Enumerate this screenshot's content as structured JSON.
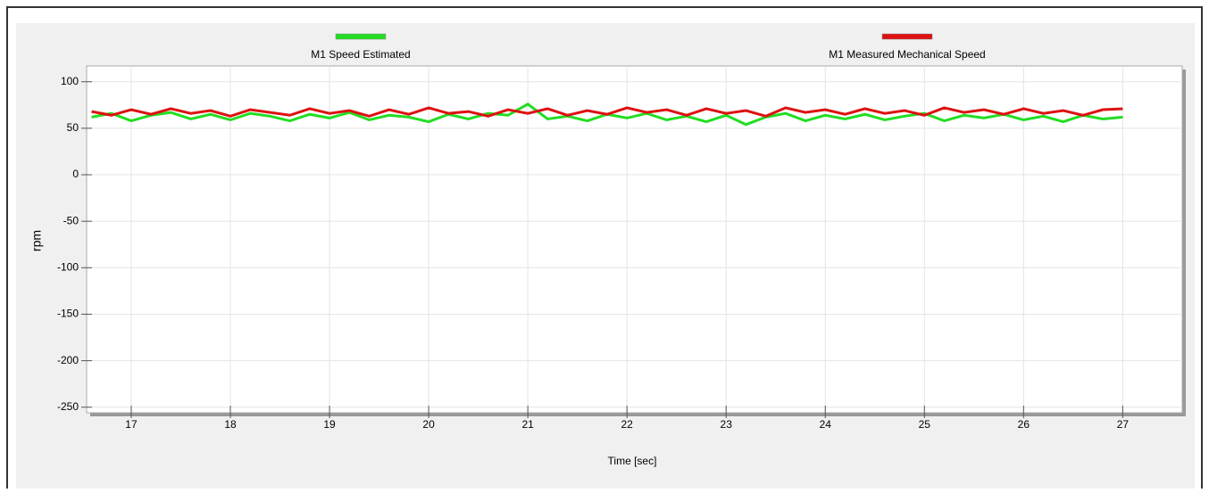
{
  "chart_data": {
    "type": "line",
    "xlabel": "Time [sec]",
    "ylabel": "rpm",
    "x": [
      16.6,
      16.8,
      17.0,
      17.2,
      17.4,
      17.6,
      17.8,
      18.0,
      18.2,
      18.4,
      18.6,
      18.8,
      19.0,
      19.2,
      19.4,
      19.6,
      19.8,
      20.0,
      20.2,
      20.4,
      20.6,
      20.8,
      21.0,
      21.2,
      21.4,
      21.6,
      21.8,
      22.0,
      22.2,
      22.4,
      22.6,
      22.8,
      23.0,
      23.2,
      23.4,
      23.6,
      23.8,
      24.0,
      24.2,
      24.4,
      24.6,
      24.8,
      25.0,
      25.2,
      25.4,
      25.6,
      25.8,
      26.0,
      26.2,
      26.4,
      26.6,
      26.8,
      27.0
    ],
    "series": [
      {
        "name": "M1 Speed Estimated",
        "color": "#22dd22",
        "values": [
          62,
          66,
          58,
          64,
          67,
          60,
          65,
          59,
          66,
          63,
          58,
          65,
          61,
          67,
          59,
          64,
          62,
          57,
          65,
          60,
          66,
          64,
          76,
          60,
          63,
          58,
          65,
          61,
          66,
          59,
          63,
          57,
          64,
          54,
          62,
          66,
          58,
          64,
          60,
          65,
          59,
          63,
          66,
          58,
          64,
          61,
          65,
          59,
          63,
          57,
          64,
          60,
          62
        ]
      },
      {
        "name": "M1 Measured Mechanical Speed",
        "color": "#dd1111",
        "values": [
          68,
          64,
          70,
          65,
          71,
          66,
          69,
          63,
          70,
          67,
          64,
          71,
          66,
          69,
          63,
          70,
          65,
          72,
          66,
          68,
          63,
          70,
          66,
          71,
          64,
          69,
          65,
          72,
          67,
          70,
          64,
          71,
          66,
          69,
          63,
          72,
          67,
          70,
          65,
          71,
          66,
          69,
          64,
          72,
          67,
          70,
          65,
          71,
          66,
          69,
          64,
          70,
          71
        ]
      }
    ],
    "xlim": [
      16.55,
      27.6
    ],
    "ylim": [
      -256,
      117
    ],
    "xticks": [
      17,
      18,
      19,
      20,
      21,
      22,
      23,
      24,
      25,
      26,
      27
    ],
    "yticks": [
      -250,
      -200,
      -150,
      -100,
      -50,
      0,
      50,
      100
    ],
    "grid": true,
    "legend": "top"
  }
}
